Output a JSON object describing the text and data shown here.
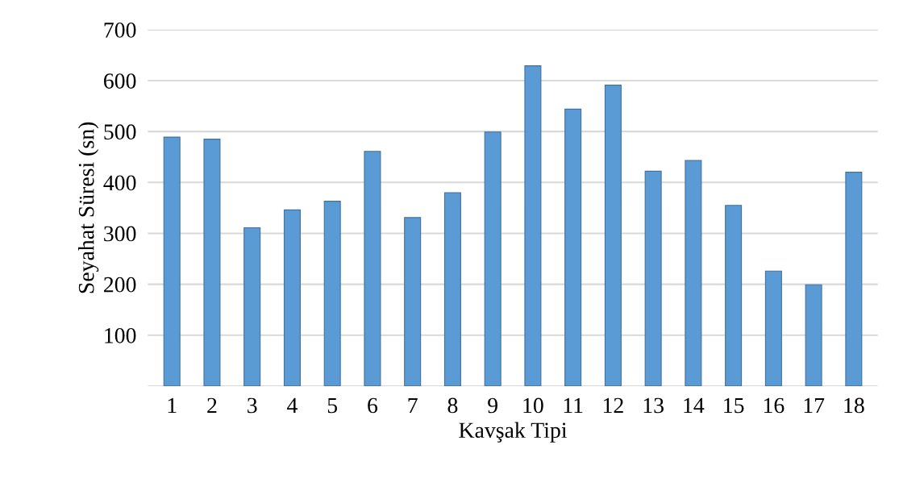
{
  "chart_data": {
    "type": "bar",
    "xlabel": "Kavşak Tipi",
    "ylabel": "Seyahat Süresi (sn)",
    "categories": [
      "1",
      "2",
      "3",
      "4",
      "5",
      "6",
      "7",
      "8",
      "9",
      "10",
      "11",
      "12",
      "13",
      "14",
      "15",
      "16",
      "17",
      "18"
    ],
    "values": [
      489,
      485,
      311,
      346,
      363,
      461,
      331,
      380,
      499,
      629,
      544,
      591,
      422,
      443,
      355,
      226,
      199,
      420
    ],
    "color": "#5b9bd5",
    "ylim": [
      0,
      700
    ],
    "yticks": [
      {
        "value": 0,
        "label": null
      },
      100,
      200,
      300,
      400,
      500,
      600,
      700
    ],
    "grid": "y"
  }
}
